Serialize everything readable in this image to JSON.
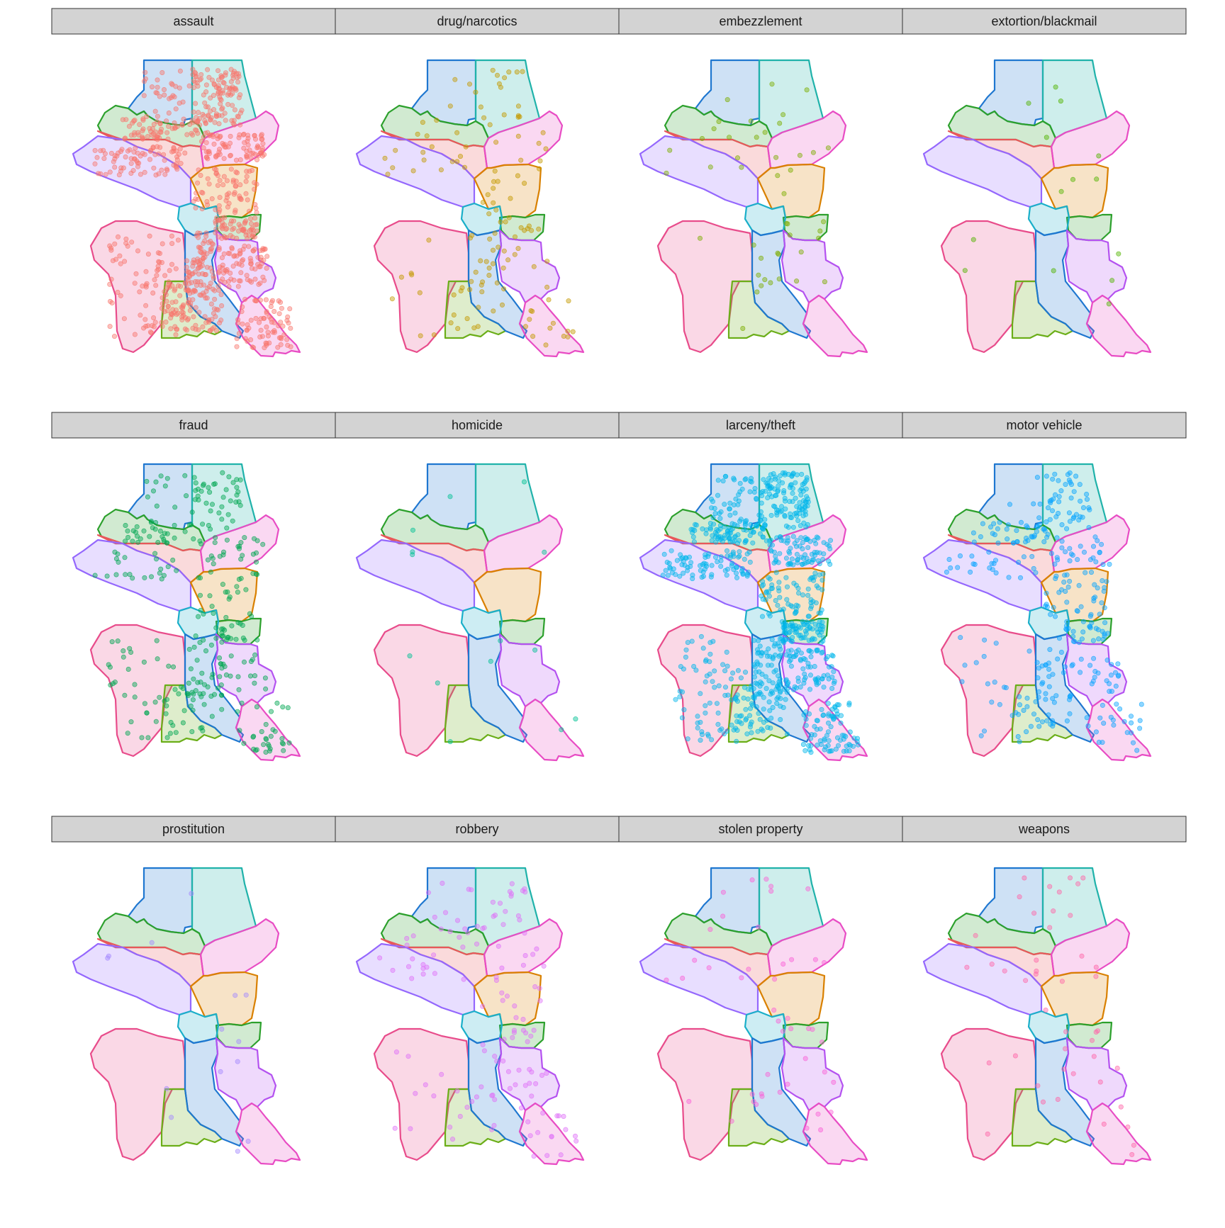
{
  "chart_data": {
    "type": "scatter",
    "title": "",
    "xlabel": "",
    "ylabel": "",
    "facet_layout": {
      "columns": 4,
      "rows": 3
    },
    "panels": [
      {
        "label": "assault",
        "color": "#F8766D",
        "density": "very high"
      },
      {
        "label": "drug/narcotics",
        "color": "#C49A00",
        "density": "medium"
      },
      {
        "label": "embezzlement",
        "color": "#7CAE00",
        "density": "low"
      },
      {
        "label": "extortion/blackmail",
        "color": "#53B400",
        "density": "very low"
      },
      {
        "label": "fraud",
        "color": "#00A651",
        "density": "high"
      },
      {
        "label": "homicide",
        "color": "#00C094",
        "density": "very low"
      },
      {
        "label": "larceny/theft",
        "color": "#00B6EB",
        "density": "very high"
      },
      {
        "label": "motor vehicle",
        "color": "#06A4FF",
        "density": "high"
      },
      {
        "label": "prostitution",
        "color": "#A58AFF",
        "density": "very low"
      },
      {
        "label": "robbery",
        "color": "#DF70F8",
        "density": "medium"
      },
      {
        "label": "stolen property",
        "color": "#FB61D7",
        "density": "low"
      },
      {
        "label": "weapons",
        "color": "#FF66A8",
        "density": "low"
      }
    ],
    "regions": [
      {
        "color": "#1F77D0"
      },
      {
        "color": "#20B2AA"
      },
      {
        "color": "#2CA02C"
      },
      {
        "color": "#E8575A"
      },
      {
        "color": "#E84CC4"
      },
      {
        "color": "#9467FD"
      },
      {
        "color": "#D98000"
      },
      {
        "color": "#2CA02C"
      },
      {
        "color": "#1AAFC9"
      },
      {
        "color": "#E84C8B"
      },
      {
        "color": "#6BAE18"
      },
      {
        "color": "#1F77D0"
      },
      {
        "color": "#B452F0"
      },
      {
        "color": "#E84CC4"
      }
    ]
  }
}
